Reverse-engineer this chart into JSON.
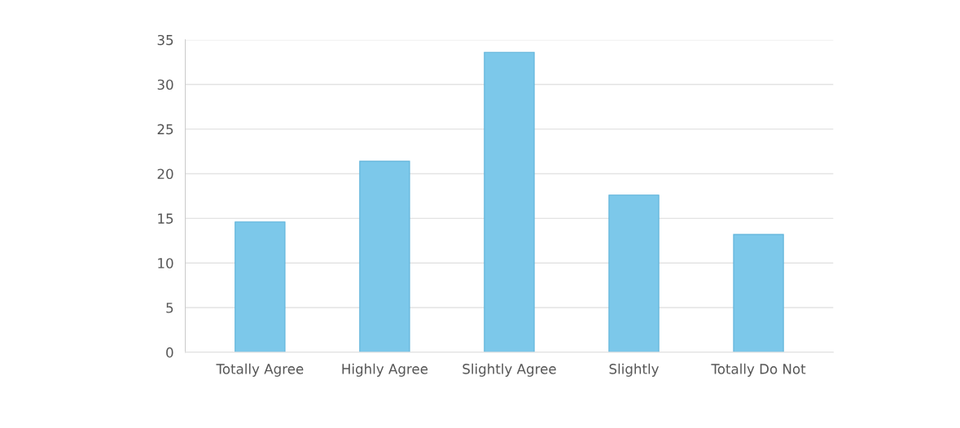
{
  "chart_data": {
    "type": "bar",
    "categories": [
      "Totally Agree",
      "Highly Agree",
      "Slightly Agree",
      "Slightly",
      "Totally Do Not"
    ],
    "values": [
      14.6,
      21.4,
      33.6,
      17.6,
      13.2
    ],
    "color": "#7cc8ea",
    "ylim": [
      0,
      35
    ],
    "yticks": [
      0,
      5,
      10,
      15,
      20,
      25,
      30,
      35
    ],
    "grid": "y"
  }
}
